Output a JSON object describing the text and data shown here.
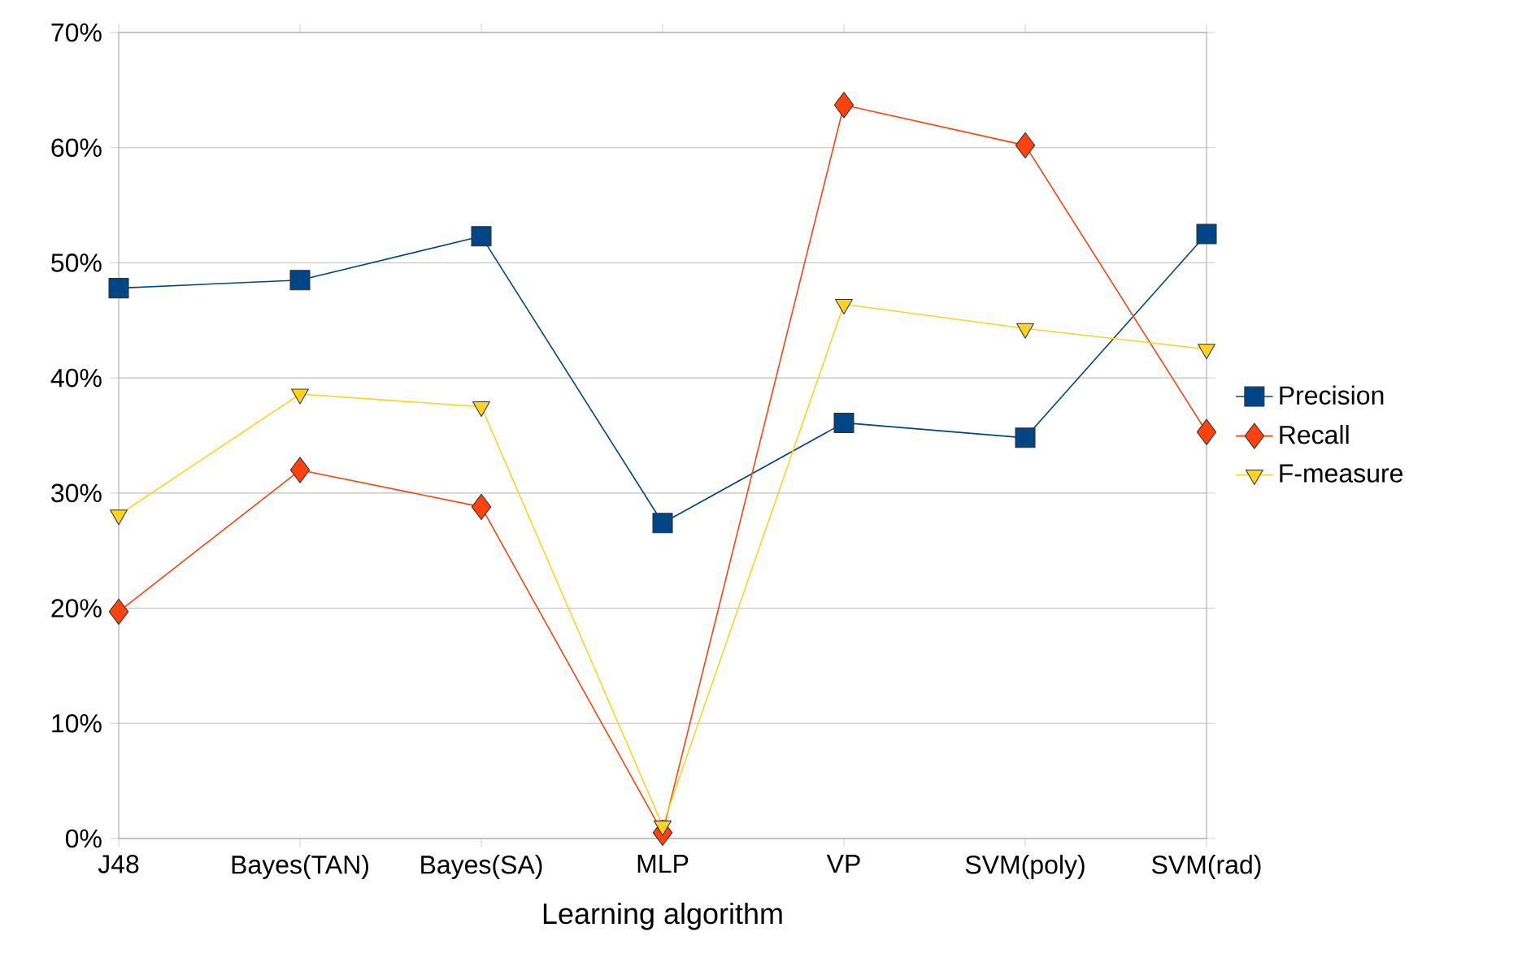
{
  "chart_data": {
    "type": "line",
    "xlabel": "Learning algorithm",
    "categories": [
      "J48",
      "Bayes(TAN)",
      "Bayes(SA)",
      "MLP",
      "VP",
      "SVM(poly)",
      "SVM(rad)"
    ],
    "series": [
      {
        "name": "Precision",
        "color": "#004586",
        "marker": "square",
        "values": [
          47.8,
          48.5,
          52.3,
          27.4,
          36.1,
          34.8,
          52.5
        ]
      },
      {
        "name": "Recall",
        "color": "#ff420e",
        "marker": "diamond",
        "values": [
          19.7,
          32.0,
          28.8,
          0.5,
          63.7,
          60.2,
          35.3
        ]
      },
      {
        "name": "F-measure",
        "color": "#ffd320",
        "marker": "triangle",
        "values": [
          28.1,
          38.6,
          37.5,
          1.1,
          46.4,
          44.3,
          42.5
        ]
      }
    ],
    "ylim": [
      0,
      70
    ],
    "yticks": [
      {
        "value": 0,
        "label": "0%"
      },
      {
        "value": 10,
        "label": "10%"
      },
      {
        "value": 20,
        "label": "20%"
      },
      {
        "value": 30,
        "label": "30%"
      },
      {
        "value": 40,
        "label": "40%"
      },
      {
        "value": 50,
        "label": "50%"
      },
      {
        "value": 60,
        "label": "60%"
      },
      {
        "value": 70,
        "label": "70%"
      }
    ],
    "grid": "y",
    "legend": "right"
  }
}
